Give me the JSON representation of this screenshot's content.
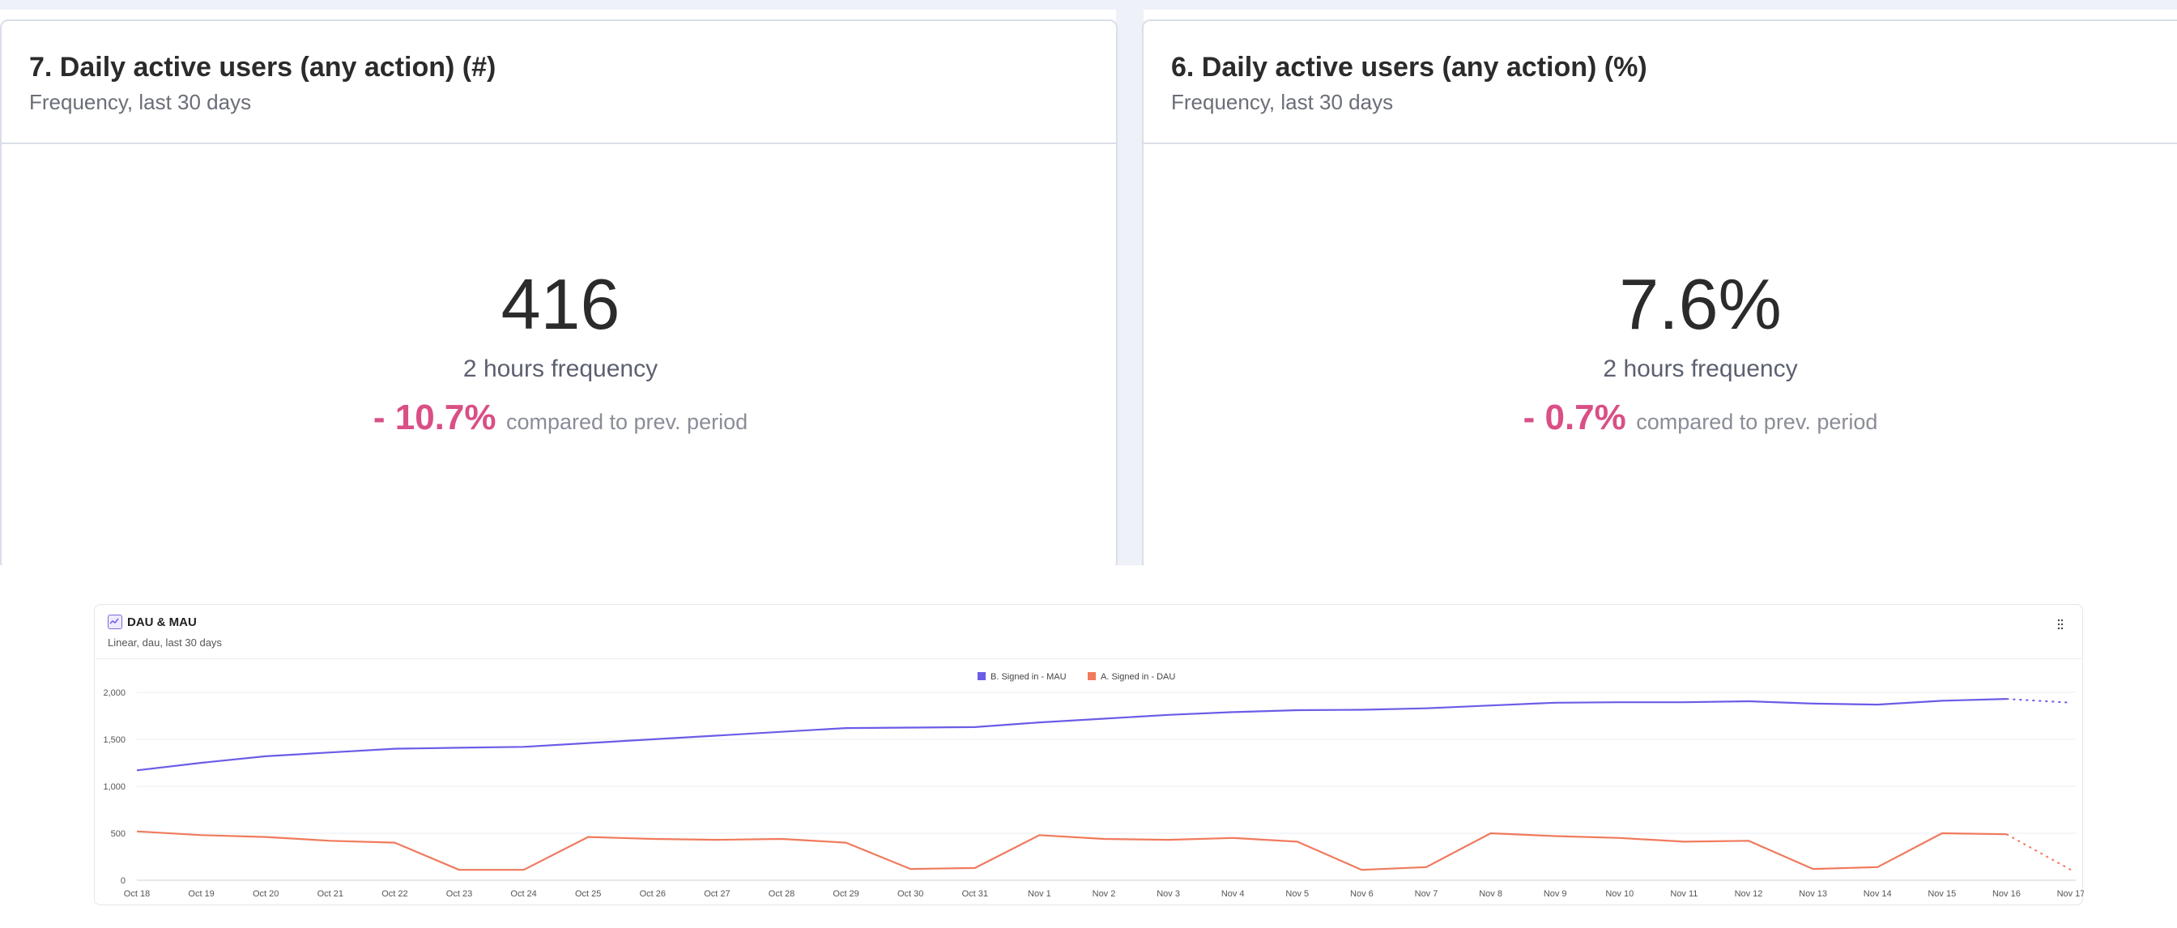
{
  "kpi_cards": [
    {
      "title": "7. Daily active users (any action) (#)",
      "subtitle": "Frequency, last 30 days",
      "value": "416",
      "frequency": "2 hours frequency",
      "delta": "- 10.7%",
      "compare": "compared to prev. period"
    },
    {
      "title": "6. Daily active users (any action) (%)",
      "subtitle": "Frequency, last 30 days",
      "value": "7.6%",
      "frequency": "2 hours frequency",
      "delta": "- 0.7%",
      "compare": "compared to prev. period"
    }
  ],
  "chart_card": {
    "title": "DAU & MAU",
    "subtitle": "Linear, dau, last 30 days",
    "icon": "line-chart-icon",
    "menu_icon": "more-vertical-icon"
  },
  "colors": {
    "mau": "#6b5ce7",
    "dau": "#f07a5c",
    "negative": "#d94f86"
  },
  "chart_data": {
    "type": "line",
    "title": "DAU & MAU",
    "subtitle": "Linear, dau, last 30 days",
    "categories": [
      "Oct 18",
      "Oct 19",
      "Oct 20",
      "Oct 21",
      "Oct 22",
      "Oct 23",
      "Oct 24",
      "Oct 25",
      "Oct 26",
      "Oct 27",
      "Oct 28",
      "Oct 29",
      "Oct 30",
      "Oct 31",
      "Nov 1",
      "Nov 2",
      "Nov 3",
      "Nov 4",
      "Nov 5",
      "Nov 6",
      "Nov 7",
      "Nov 8",
      "Nov 9",
      "Nov 10",
      "Nov 11",
      "Nov 12",
      "Nov 13",
      "Nov 14",
      "Nov 15",
      "Nov 16",
      "Nov 17"
    ],
    "series": [
      {
        "name": "B. Signed in - MAU",
        "values": [
          1170,
          1250,
          1320,
          1360,
          1400,
          1410,
          1420,
          1460,
          1500,
          1540,
          1580,
          1620,
          1625,
          1630,
          1680,
          1720,
          1760,
          1790,
          1810,
          1815,
          1830,
          1860,
          1890,
          1895,
          1895,
          1905,
          1880,
          1870,
          1910,
          1930,
          1890
        ],
        "partial_last": true
      },
      {
        "name": "A. Signed in - DAU",
        "values": [
          520,
          480,
          460,
          420,
          400,
          110,
          110,
          460,
          440,
          430,
          440,
          400,
          120,
          130,
          480,
          440,
          430,
          450,
          410,
          110,
          140,
          500,
          470,
          450,
          410,
          420,
          120,
          140,
          500,
          490,
          110
        ],
        "partial_last": true
      }
    ],
    "yticks": [
      "2,000",
      "1,500",
      "1,000",
      "500",
      "0"
    ],
    "ytick_values": [
      2000,
      1500,
      1000,
      500,
      0
    ],
    "ylim": [
      0,
      2000
    ],
    "legend": "top-center",
    "grid": true
  }
}
